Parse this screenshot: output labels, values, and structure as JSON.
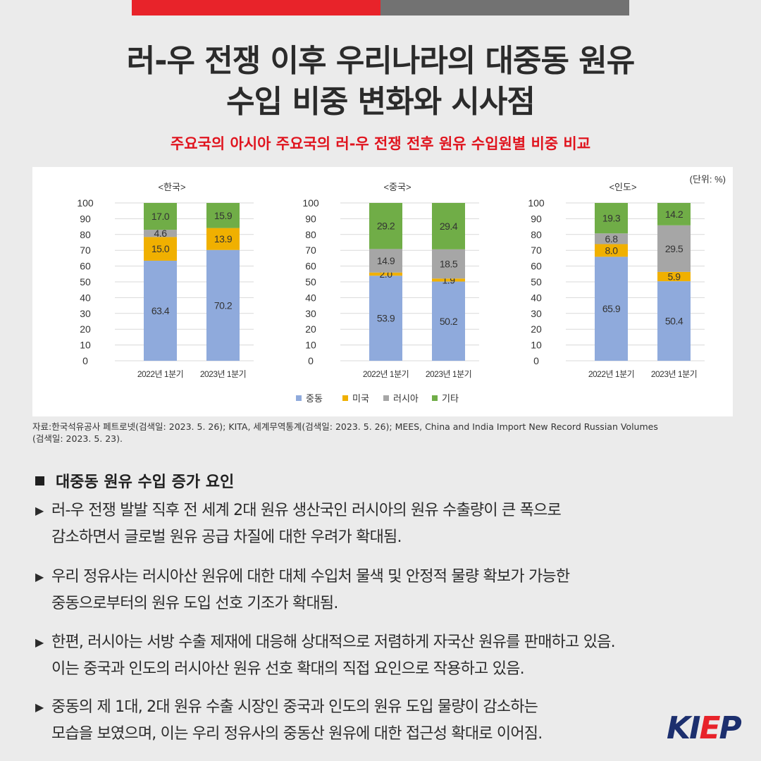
{
  "header": {
    "title_line1": "러-우 전쟁 이후 우리나라의 대중동 원유",
    "title_line2": "수입 비중 변화와 시사점",
    "subtitle": "주요국의 아시아 주요국의 러-우 전쟁 전후 원유 수입원별 비중 비교"
  },
  "colors": {
    "accent_red": "#e8232a",
    "middle_east": "#8faadc",
    "usa": "#f0b000",
    "russia": "#a6a6a6",
    "other": "#70ad47"
  },
  "chart_data": {
    "type": "bar",
    "stacked": true,
    "unit_label": "(단위: %)",
    "ylim": [
      0,
      100
    ],
    "yticks": [
      "100",
      "90",
      "80",
      "70",
      "60",
      "50",
      "40",
      "30",
      "20",
      "10",
      "0"
    ],
    "legend_position": "bottom",
    "grid": true,
    "series_names": [
      "중동",
      "미국",
      "러시아",
      "기타"
    ],
    "panels": [
      {
        "title": "<한국>",
        "categories": [
          "2022년 1분기",
          "2023년 1분기"
        ],
        "series": [
          {
            "name": "중동",
            "values": [
              63.4,
              70.2
            ]
          },
          {
            "name": "미국",
            "values": [
              15.0,
              13.9
            ]
          },
          {
            "name": "러시아",
            "values": [
              4.6,
              null
            ]
          },
          {
            "name": "기타",
            "values": [
              17.0,
              15.9
            ]
          }
        ]
      },
      {
        "title": "<중국>",
        "categories": [
          "2022년 1분기",
          "2023년 1분기"
        ],
        "series": [
          {
            "name": "중동",
            "values": [
              53.9,
              50.2
            ]
          },
          {
            "name": "미국",
            "values": [
              2.0,
              1.9
            ]
          },
          {
            "name": "러시아",
            "values": [
              14.9,
              18.5
            ]
          },
          {
            "name": "기타",
            "values": [
              29.2,
              29.4
            ]
          }
        ]
      },
      {
        "title": "<인도>",
        "categories": [
          "2022년 1분기",
          "2023년 1분기"
        ],
        "series": [
          {
            "name": "중동",
            "values": [
              65.9,
              50.4
            ]
          },
          {
            "name": "미국",
            "values": [
              8.0,
              5.9
            ]
          },
          {
            "name": "러시아",
            "values": [
              6.8,
              29.5
            ]
          },
          {
            "name": "기타",
            "values": [
              19.3,
              14.2
            ]
          }
        ]
      }
    ]
  },
  "source": {
    "line1": "자료:한국석유공사 페트로넷(검색일: 2023. 5. 26); KITA, 세계무역통계(검색일: 2023. 5. 26); MEES, China and India Import New Record Russian Volumes",
    "line2": "(검색일: 2023. 5. 23)."
  },
  "section": {
    "heading": "대중동 원유 수입 증가 요인",
    "bullets": [
      {
        "line1": "러-우 전쟁 발발 직후 전 세계 2대 원유 생산국인 러시아의 원유 수출량이 큰 폭으로",
        "line2": "감소하면서 글로벌 원유 공급 차질에 대한 우려가 확대됨."
      },
      {
        "line1": "우리 정유사는 러시아산 원유에 대한 대체 수입처 물색 및 안정적 물량 확보가 가능한",
        "line2": "중동으로부터의 원유 도입 선호 기조가 확대됨."
      },
      {
        "line1": "한편, 러시아는 서방 수출 제재에 대응해 상대적으로 저렴하게 자국산 원유를 판매하고 있음.",
        "line2": "이는 중국과 인도의 러시아산 원유 선호 확대의 직접 요인으로 작용하고 있음."
      },
      {
        "line1": "중동의 제 1대, 2대 원유 수출 시장인 중국과 인도의 원유 도입 물량이 감소하는",
        "line2": "모습을 보였으며, 이는 우리 정유사의 중동산 원유에 대한 접근성 확대로 이어짐."
      }
    ],
    "bullet_marker": "▶",
    "heading_marker": "square"
  },
  "logo": {
    "part1": "KI",
    "part2": "E",
    "part3": "P"
  }
}
